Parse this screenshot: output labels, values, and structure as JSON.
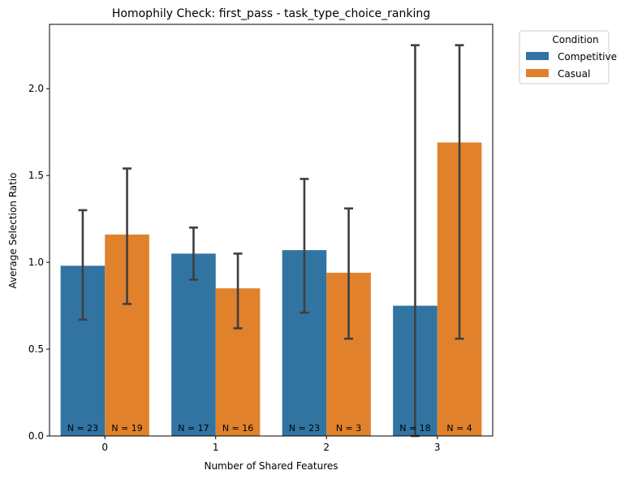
{
  "chart_data": {
    "type": "bar",
    "title": "Homophily Check: first_pass - task_type_choice_ranking",
    "xlabel": "Number of Shared Features",
    "ylabel": "Average Selection Ratio",
    "categories": [
      "0",
      "1",
      "2",
      "3"
    ],
    "ylim": [
      0,
      2.37
    ],
    "yticks": [
      "0.0",
      "0.5",
      "1.0",
      "1.5",
      "2.0"
    ],
    "grid": false,
    "legend": {
      "title": "Condition",
      "placement": "outside-top-right"
    },
    "series": [
      {
        "name": "Competitive",
        "color": "#3274a1",
        "values": [
          0.98,
          1.05,
          1.07,
          0.75
        ],
        "ci_low": [
          0.67,
          0.9,
          0.71,
          0.0
        ],
        "ci_high": [
          1.3,
          1.2,
          1.48,
          2.25
        ],
        "n_labels": [
          "N = 23",
          "N = 17",
          "N = 23",
          "N = 18"
        ]
      },
      {
        "name": "Casual",
        "color": "#e1812c",
        "values": [
          1.16,
          0.85,
          0.94,
          1.69
        ],
        "ci_low": [
          0.76,
          0.62,
          0.56,
          0.56
        ],
        "ci_high": [
          1.54,
          1.05,
          1.31,
          2.25
        ],
        "n_labels": [
          "N = 19",
          "N = 16",
          "N = 3",
          "N = 4"
        ]
      }
    ],
    "errorbar_color": "#3f3f3f"
  }
}
